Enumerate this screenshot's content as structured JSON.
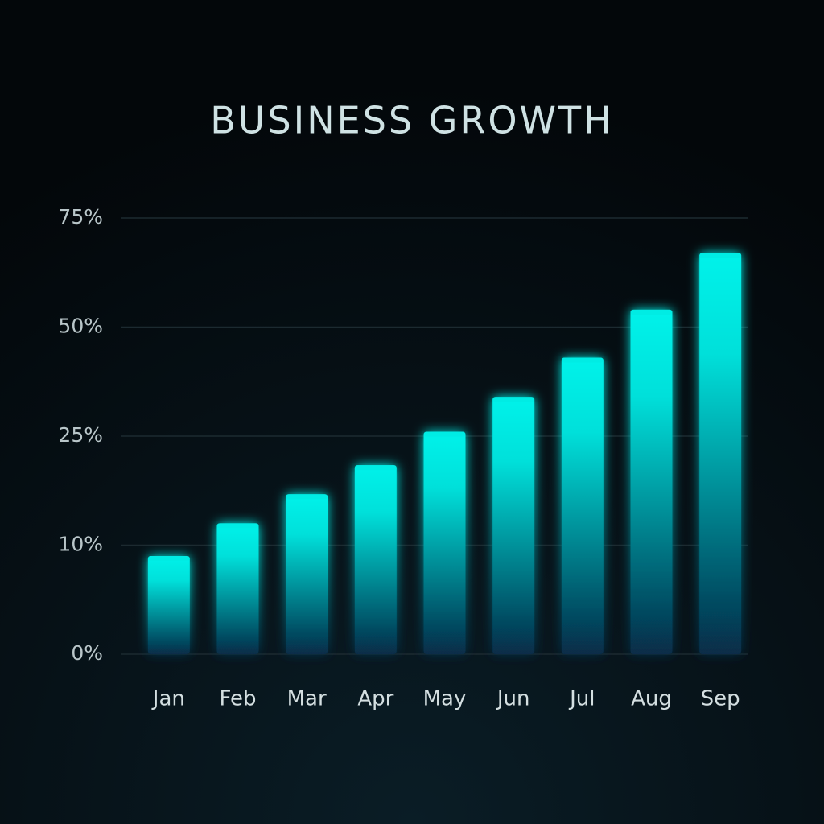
{
  "chart_data": {
    "type": "bar",
    "title": "BUSINESS GROWTH",
    "categories": [
      "Jan",
      "Feb",
      "Mar",
      "Apr",
      "May",
      "Jun",
      "Jul",
      "Aug",
      "Sep"
    ],
    "values": [
      9,
      13,
      17,
      21,
      26,
      34,
      43,
      54,
      67
    ],
    "color": "#00ebe3",
    "ylim": [
      0,
      75
    ],
    "yticks": [
      {
        "value": 0,
        "label": "0%"
      },
      {
        "value": 10,
        "label": "10%"
      },
      {
        "value": 25,
        "label": "25%"
      },
      {
        "value": 50,
        "label": "50%"
      },
      {
        "value": 75,
        "label": "75%"
      }
    ],
    "grid": true
  }
}
